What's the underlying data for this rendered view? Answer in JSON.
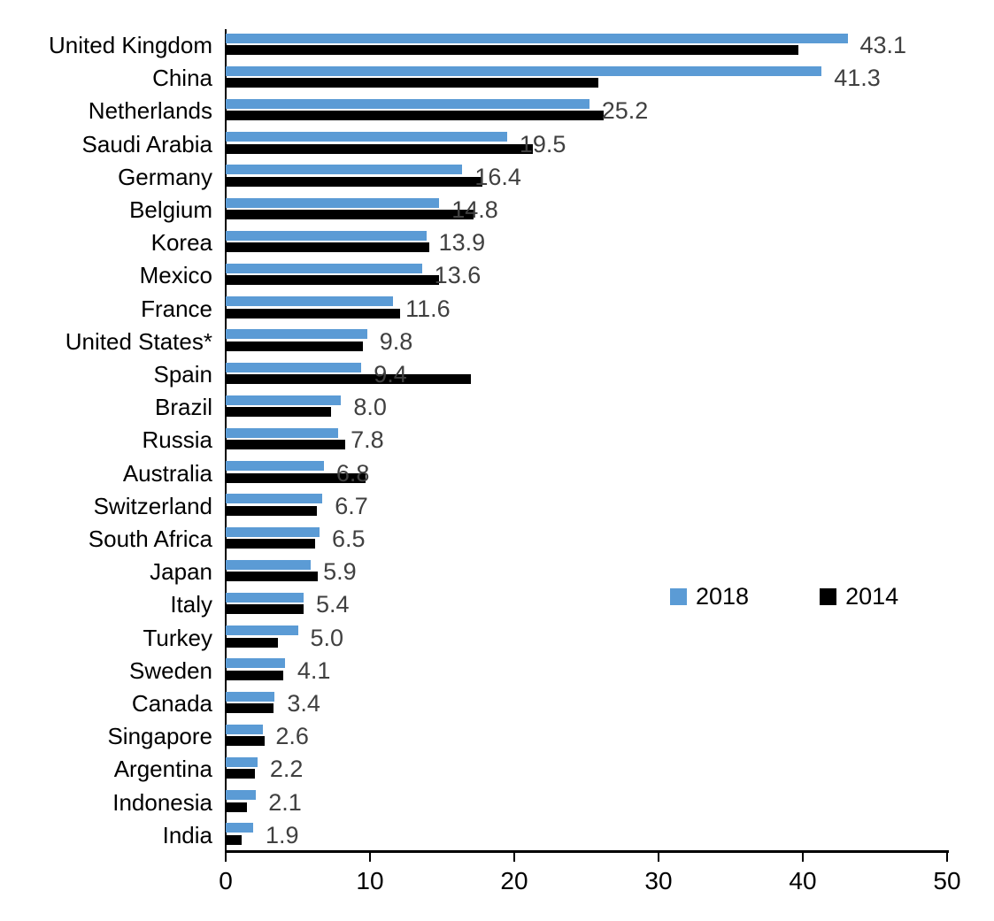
{
  "chart_data": {
    "type": "bar",
    "orientation": "horizontal",
    "title": "",
    "xlabel": "",
    "ylabel": "",
    "xlim": [
      0,
      50
    ],
    "x_ticks": [
      0,
      10,
      20,
      30,
      40,
      50
    ],
    "grid": false,
    "legend_position": "middle-right",
    "categories": [
      "United Kingdom",
      "China",
      "Netherlands",
      "Saudi Arabia",
      "Germany",
      "Belgium",
      "Korea",
      "Mexico",
      "France",
      "United States*",
      "Spain",
      "Brazil",
      "Russia",
      "Australia",
      "Switzerland",
      "South Africa",
      "Japan",
      "Italy",
      "Turkey",
      "Sweden",
      "Canada",
      "Singapore",
      "Argentina",
      "Indonesia",
      "India"
    ],
    "series": [
      {
        "name": "2018",
        "color": "#5B9BD5",
        "values": [
          43.1,
          41.3,
          25.2,
          19.5,
          16.4,
          14.8,
          13.9,
          13.6,
          11.6,
          9.8,
          9.4,
          8.0,
          7.8,
          6.8,
          6.7,
          6.5,
          5.9,
          5.4,
          5.0,
          4.1,
          3.4,
          2.6,
          2.2,
          2.1,
          1.9
        ],
        "data_labels": [
          "43.1",
          "41.3",
          "25.2",
          "19.5",
          "16.4",
          "14.8",
          "13.9",
          "13.6",
          "11.6",
          "9.8",
          "9.4",
          "8.0",
          "7.8",
          "6.8",
          "6.7",
          "6.5",
          "5.9",
          "5.4",
          "5.0",
          "4.1",
          "3.4",
          "2.6",
          "2.2",
          "2.1",
          "1.9"
        ]
      },
      {
        "name": "2014",
        "color": "#000000",
        "values": [
          39.7,
          25.8,
          26.2,
          21.3,
          17.8,
          17.2,
          14.1,
          14.8,
          12.1,
          9.5,
          17.0,
          7.3,
          8.3,
          9.7,
          6.3,
          6.2,
          6.4,
          5.4,
          3.6,
          4.0,
          3.3,
          2.7,
          2.0,
          1.5,
          1.1
        ],
        "data_labels": []
      }
    ],
    "value_label_color": "#404040"
  },
  "legend": {
    "item_2018": "2018",
    "item_2014": "2014"
  }
}
